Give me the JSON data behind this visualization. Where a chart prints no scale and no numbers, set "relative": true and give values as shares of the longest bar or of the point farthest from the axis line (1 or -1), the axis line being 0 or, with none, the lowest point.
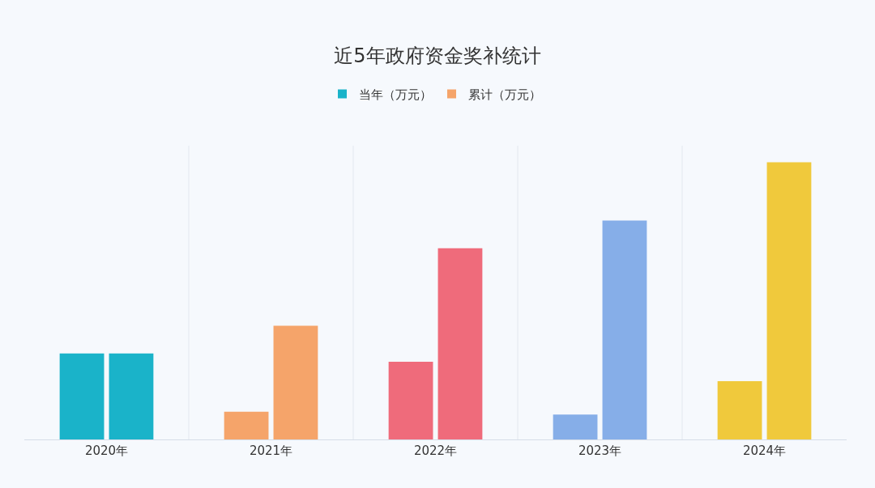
{
  "chart_data": {
    "type": "bar",
    "title": "近5年政府资金奖补统计",
    "categories": [
      "2020年",
      "2021年",
      "2022年",
      "2023年",
      "2024年"
    ],
    "relative": true,
    "legend": "top",
    "series": [
      {
        "name": "当年（万元）",
        "color": "#1ab3c9",
        "colors": [
          "#1ab3c9",
          "#f5a46a",
          "#ef6b7b",
          "#86aee8",
          "#f0c93c"
        ],
        "values": [
          0.31,
          0.1,
          0.28,
          0.09,
          0.21
        ]
      },
      {
        "name": "累计（万元）",
        "color": "#f5a46a",
        "colors": [
          "#1ab3c9",
          "#f5a46a",
          "#ef6b7b",
          "#86aee8",
          "#f0c93c"
        ],
        "values": [
          0.31,
          0.41,
          0.69,
          0.79,
          1
        ]
      }
    ]
  }
}
